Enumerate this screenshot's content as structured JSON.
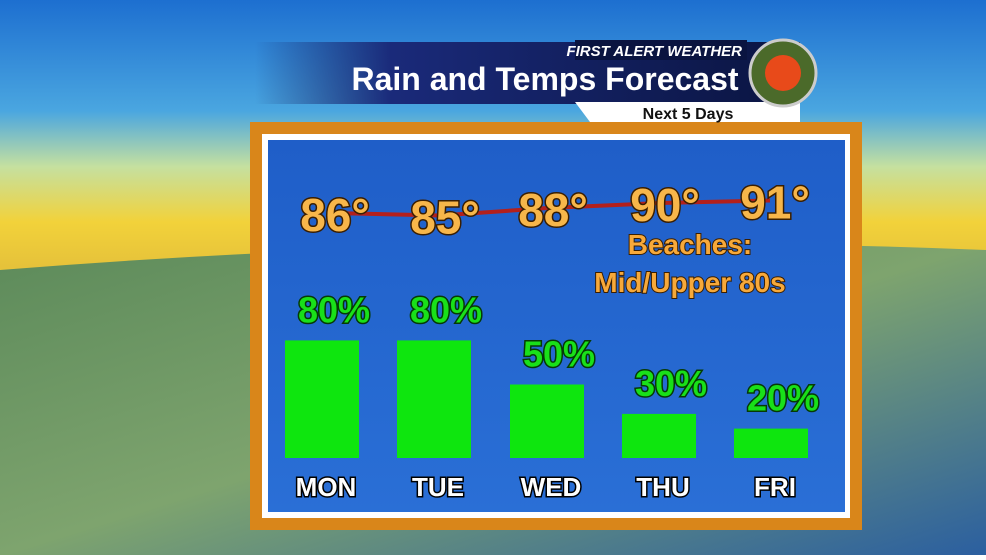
{
  "header": {
    "brand": "FIRST ALERT WEATHER",
    "title": "Rain and Temps Forecast",
    "subtitle": "Next 5 Days"
  },
  "chart_data": [
    {
      "type": "bar",
      "categories": [
        "MON",
        "TUE",
        "WED",
        "THU",
        "FRI"
      ],
      "values": [
        80,
        80,
        50,
        30,
        20
      ],
      "value_labels": [
        "80%",
        "80%",
        "50%",
        "30%",
        "20%"
      ],
      "color": "#0ee60e",
      "annotation": [
        "Beaches:",
        "Mid/Upper 80s"
      ]
    },
    {
      "type": "line",
      "values": [
        86,
        85,
        88,
        90,
        91
      ],
      "value_labels": [
        "86°",
        "85°",
        "88°",
        "90°",
        "91°"
      ],
      "color": "#b3201c"
    }
  ]
}
